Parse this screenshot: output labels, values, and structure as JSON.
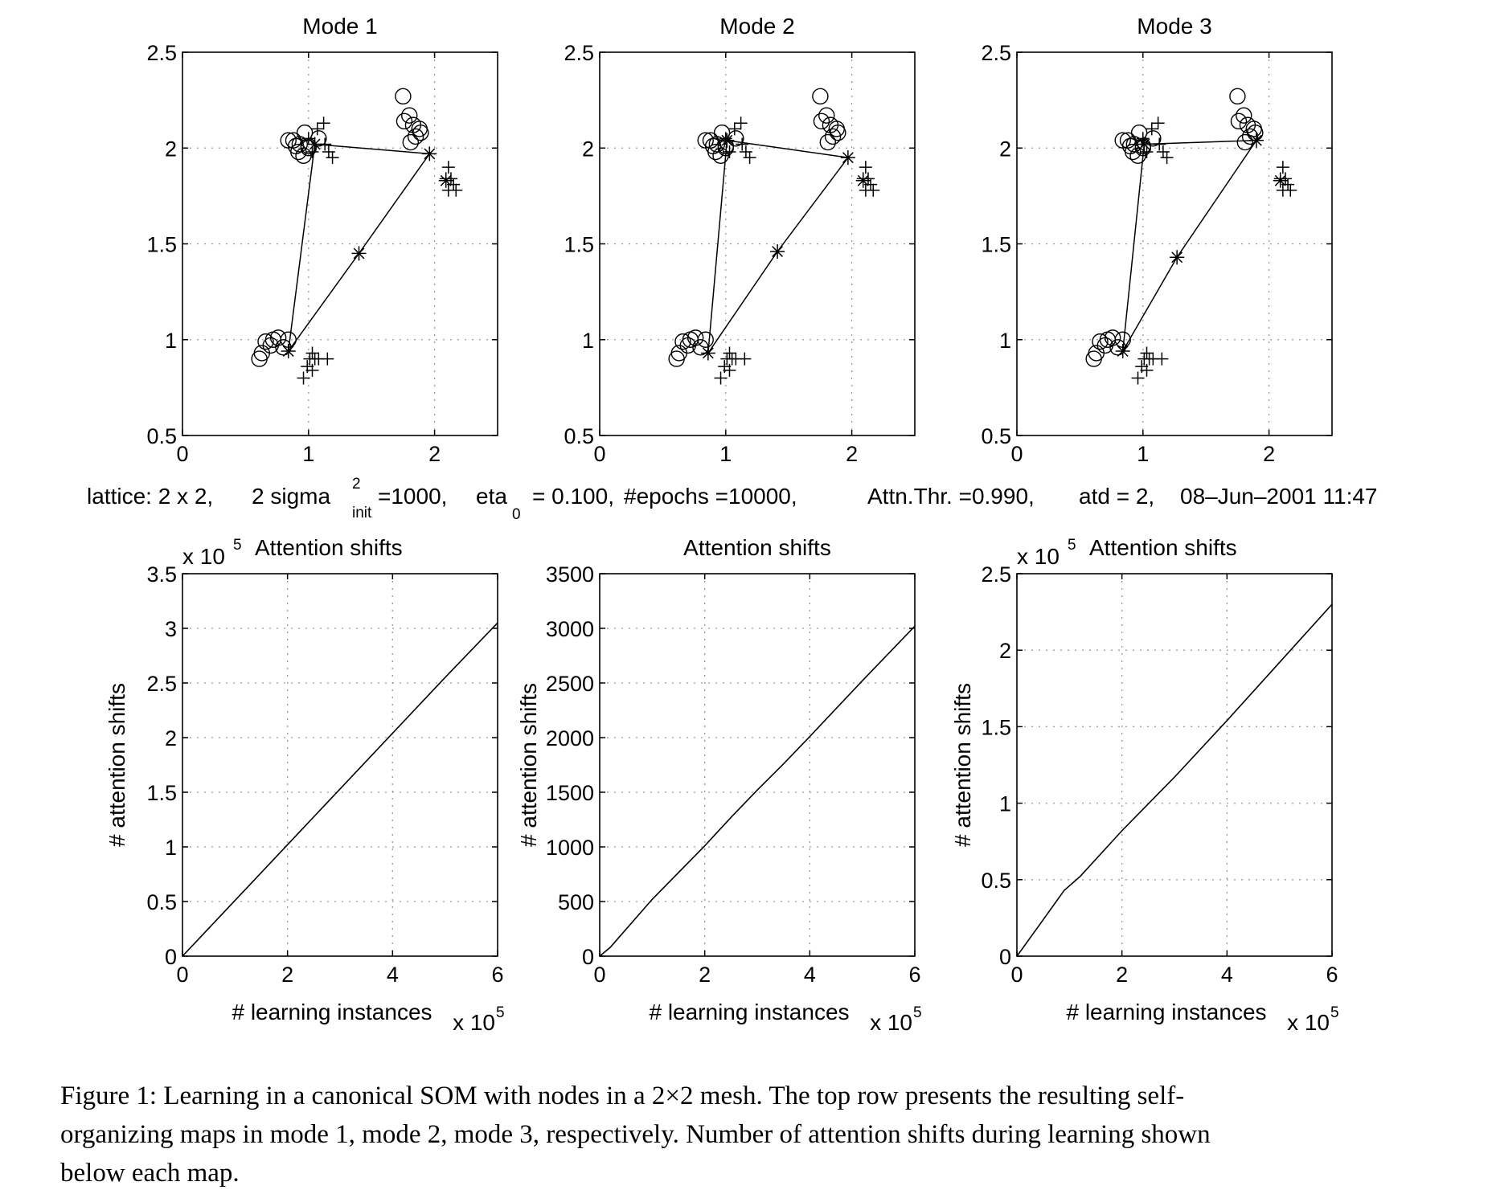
{
  "chart_data": [
    {
      "type": "scatter",
      "title": "Mode 1",
      "xlim": [
        0,
        2.5
      ],
      "ylim": [
        0.5,
        2.5
      ],
      "xticks": [
        "0",
        "1",
        "2"
      ],
      "yticks": [
        "0.5",
        "1",
        "1.5",
        "2",
        "2.5"
      ],
      "grid": true,
      "circles": [
        [
          0.7,
          0.97
        ],
        [
          0.76,
          1.01
        ],
        [
          0.84,
          1.0
        ],
        [
          0.66,
          0.99
        ],
        [
          0.63,
          0.93
        ],
        [
          0.61,
          0.9
        ],
        [
          0.72,
          1.0
        ],
        [
          0.8,
          0.96
        ],
        [
          0.84,
          2.04
        ],
        [
          0.88,
          2.04
        ],
        [
          0.93,
          2.02
        ],
        [
          0.97,
          2.08
        ],
        [
          0.92,
          1.98
        ],
        [
          0.96,
          1.96
        ],
        [
          1.0,
          2.0
        ],
        [
          0.9,
          2.01
        ],
        [
          1.08,
          2.05
        ],
        [
          1.0,
          2.01
        ],
        [
          1.75,
          2.27
        ],
        [
          1.76,
          2.14
        ],
        [
          1.8,
          2.17
        ],
        [
          1.83,
          2.12
        ],
        [
          1.85,
          2.06
        ],
        [
          1.88,
          2.1
        ],
        [
          1.81,
          2.03
        ],
        [
          1.89,
          2.08
        ]
      ],
      "pluses": [
        [
          1.01,
          0.9
        ],
        [
          1.03,
          0.93
        ],
        [
          1.05,
          0.9
        ],
        [
          1.08,
          0.9
        ],
        [
          0.99,
          0.86
        ],
        [
          1.03,
          0.84
        ],
        [
          0.96,
          0.8
        ],
        [
          1.15,
          0.9
        ],
        [
          1.0,
          2.05
        ],
        [
          1.07,
          2.1
        ],
        [
          1.12,
          2.13
        ],
        [
          1.13,
          2.02
        ],
        [
          1.16,
          1.98
        ],
        [
          1.19,
          1.95
        ],
        [
          1.03,
          1.98
        ],
        [
          2.09,
          1.84
        ],
        [
          2.11,
          1.9
        ],
        [
          2.13,
          1.84
        ],
        [
          2.15,
          1.81
        ],
        [
          2.17,
          1.78
        ],
        [
          2.11,
          1.78
        ]
      ],
      "nodes": [
        [
          0.84,
          0.94
        ],
        [
          1.05,
          2.02
        ],
        [
          1.96,
          1.97
        ],
        [
          1.4,
          1.45
        ]
      ],
      "centroids": [
        [
          2.09,
          1.83
        ]
      ],
      "lattice_edges": [
        [
          0,
          1
        ],
        [
          1,
          2
        ],
        [
          2,
          3
        ],
        [
          3,
          0
        ]
      ]
    },
    {
      "type": "scatter",
      "title": "Mode 2",
      "xlim": [
        0,
        2.5
      ],
      "ylim": [
        0.5,
        2.5
      ],
      "xticks": [
        "0",
        "1",
        "2"
      ],
      "yticks": [
        "0.5",
        "1",
        "1.5",
        "2",
        "2.5"
      ],
      "grid": true,
      "circles": [
        [
          0.7,
          0.97
        ],
        [
          0.76,
          1.01
        ],
        [
          0.84,
          1.0
        ],
        [
          0.66,
          0.99
        ],
        [
          0.63,
          0.93
        ],
        [
          0.61,
          0.9
        ],
        [
          0.72,
          1.0
        ],
        [
          0.8,
          0.96
        ],
        [
          0.84,
          2.04
        ],
        [
          0.88,
          2.04
        ],
        [
          0.93,
          2.02
        ],
        [
          0.97,
          2.08
        ],
        [
          0.92,
          1.98
        ],
        [
          0.96,
          1.96
        ],
        [
          1.0,
          2.0
        ],
        [
          0.9,
          2.01
        ],
        [
          1.08,
          2.05
        ],
        [
          1.0,
          2.01
        ],
        [
          1.75,
          2.27
        ],
        [
          1.76,
          2.14
        ],
        [
          1.8,
          2.17
        ],
        [
          1.83,
          2.12
        ],
        [
          1.85,
          2.06
        ],
        [
          1.88,
          2.1
        ],
        [
          1.81,
          2.03
        ],
        [
          1.89,
          2.08
        ]
      ],
      "pluses": [
        [
          1.01,
          0.9
        ],
        [
          1.03,
          0.93
        ],
        [
          1.05,
          0.9
        ],
        [
          1.08,
          0.9
        ],
        [
          0.99,
          0.86
        ],
        [
          1.03,
          0.84
        ],
        [
          0.96,
          0.8
        ],
        [
          1.15,
          0.9
        ],
        [
          1.0,
          2.05
        ],
        [
          1.07,
          2.1
        ],
        [
          1.12,
          2.13
        ],
        [
          1.13,
          2.02
        ],
        [
          1.16,
          1.98
        ],
        [
          1.19,
          1.95
        ],
        [
          1.03,
          1.98
        ],
        [
          2.09,
          1.84
        ],
        [
          2.11,
          1.9
        ],
        [
          2.13,
          1.84
        ],
        [
          2.15,
          1.81
        ],
        [
          2.17,
          1.78
        ],
        [
          2.11,
          1.78
        ]
      ],
      "nodes": [
        [
          0.86,
          0.93
        ],
        [
          1.01,
          2.04
        ],
        [
          1.97,
          1.95
        ],
        [
          1.41,
          1.46
        ]
      ],
      "centroids": [
        [
          2.09,
          1.83
        ]
      ],
      "lattice_edges": [
        [
          0,
          1
        ],
        [
          1,
          2
        ],
        [
          2,
          3
        ],
        [
          3,
          0
        ]
      ]
    },
    {
      "type": "scatter",
      "title": "Mode 3",
      "xlim": [
        0,
        2.5
      ],
      "ylim": [
        0.5,
        2.5
      ],
      "xticks": [
        "0",
        "1",
        "2"
      ],
      "yticks": [
        "0.5",
        "1",
        "1.5",
        "2",
        "2.5"
      ],
      "grid": true,
      "circles": [
        [
          0.7,
          0.97
        ],
        [
          0.76,
          1.01
        ],
        [
          0.84,
          1.0
        ],
        [
          0.66,
          0.99
        ],
        [
          0.63,
          0.93
        ],
        [
          0.61,
          0.9
        ],
        [
          0.72,
          1.0
        ],
        [
          0.8,
          0.96
        ],
        [
          0.84,
          2.04
        ],
        [
          0.88,
          2.04
        ],
        [
          0.93,
          2.02
        ],
        [
          0.97,
          2.08
        ],
        [
          0.92,
          1.98
        ],
        [
          0.96,
          1.96
        ],
        [
          1.0,
          2.0
        ],
        [
          0.9,
          2.01
        ],
        [
          1.08,
          2.05
        ],
        [
          1.0,
          2.01
        ],
        [
          1.75,
          2.27
        ],
        [
          1.76,
          2.14
        ],
        [
          1.8,
          2.17
        ],
        [
          1.83,
          2.12
        ],
        [
          1.85,
          2.06
        ],
        [
          1.88,
          2.1
        ],
        [
          1.81,
          2.03
        ],
        [
          1.89,
          2.08
        ]
      ],
      "pluses": [
        [
          1.01,
          0.9
        ],
        [
          1.03,
          0.93
        ],
        [
          1.05,
          0.9
        ],
        [
          1.08,
          0.9
        ],
        [
          0.99,
          0.86
        ],
        [
          1.03,
          0.84
        ],
        [
          0.96,
          0.8
        ],
        [
          1.15,
          0.9
        ],
        [
          1.0,
          2.05
        ],
        [
          1.07,
          2.1
        ],
        [
          1.12,
          2.13
        ],
        [
          1.13,
          2.02
        ],
        [
          1.16,
          1.98
        ],
        [
          1.19,
          1.95
        ],
        [
          1.03,
          1.98
        ],
        [
          2.09,
          1.84
        ],
        [
          2.11,
          1.9
        ],
        [
          2.13,
          1.84
        ],
        [
          2.15,
          1.81
        ],
        [
          2.17,
          1.78
        ],
        [
          2.11,
          1.78
        ]
      ],
      "nodes": [
        [
          0.84,
          0.94
        ],
        [
          1.01,
          2.02
        ],
        [
          1.9,
          2.04
        ],
        [
          1.27,
          1.43
        ]
      ],
      "centroids": [
        [
          2.09,
          1.83
        ]
      ],
      "lattice_edges": [
        [
          0,
          1
        ],
        [
          1,
          2
        ],
        [
          2,
          3
        ],
        [
          3,
          0
        ]
      ]
    },
    {
      "type": "line",
      "title": "Attention shifts",
      "xlabel": "# learning instances",
      "ylabel": "# attention shifts",
      "x_multiplier": "x 10",
      "x_multiplier_exp": "5",
      "y_multiplier": "x 10",
      "y_multiplier_exp": "5",
      "xlim": [
        0,
        6
      ],
      "ylim": [
        0,
        3.5
      ],
      "xticks": [
        "0",
        "2",
        "4",
        "6"
      ],
      "yticks": [
        "0",
        "0.5",
        "1",
        "1.5",
        "2",
        "2.5",
        "3",
        "3.5"
      ],
      "grid": true,
      "x": [
        0,
        1,
        2,
        3,
        4,
        5,
        6
      ],
      "y": [
        0,
        0.51,
        1.02,
        1.53,
        2.04,
        2.55,
        3.05
      ]
    },
    {
      "type": "line",
      "title": "Attention shifts",
      "xlabel": "# learning instances",
      "ylabel": "# attention shifts",
      "x_multiplier": "x 10",
      "x_multiplier_exp": "5",
      "xlim": [
        0,
        6
      ],
      "ylim": [
        0,
        3500
      ],
      "xticks": [
        "0",
        "2",
        "4",
        "6"
      ],
      "yticks": [
        "0",
        "500",
        "1000",
        "1500",
        "2000",
        "2500",
        "3000",
        "3500"
      ],
      "grid": true,
      "x": [
        0,
        0.2,
        1,
        2,
        2.5,
        3,
        3.5,
        4,
        5,
        6
      ],
      "y": [
        0,
        80,
        520,
        1010,
        1270,
        1520,
        1760,
        2010,
        2520,
        3020
      ]
    },
    {
      "type": "line",
      "title": "Attention shifts",
      "xlabel": "# learning instances",
      "ylabel": "# attention shifts",
      "x_multiplier": "x 10",
      "x_multiplier_exp": "5",
      "y_multiplier": "x 10",
      "y_multiplier_exp": "5",
      "xlim": [
        0,
        6
      ],
      "ylim": [
        0,
        2.5
      ],
      "xticks": [
        "0",
        "2",
        "4",
        "6"
      ],
      "yticks": [
        "0",
        "0.5",
        "1",
        "1.5",
        "2",
        "2.5"
      ],
      "grid": true,
      "x": [
        0,
        0.4,
        0.9,
        1.2,
        2,
        3,
        4,
        5,
        6
      ],
      "y": [
        0,
        0.19,
        0.43,
        0.52,
        0.82,
        1.17,
        1.54,
        1.92,
        2.3
      ]
    }
  ],
  "params_line": {
    "lattice": "lattice: 2 x 2,",
    "sigma_a": "2 sigma",
    "sigma_sup": "2",
    "sigma_sub": "init",
    "sigma_b": "=1000,",
    "eta_a": "eta",
    "eta_sub": "0",
    "eta_b": "= 0.100,",
    "epochs": "#epochs =10000,",
    "attn": "Attn.Thr. =0.990,",
    "atd": "atd = 2,",
    "date": "08–Jun–2001  11:47"
  },
  "caption": {
    "line1": "Figure 1: Learning in a canonical SOM with nodes in a 2×2 mesh. The top row presents the resulting self-",
    "line2": "organizing maps in mode 1, mode 2, mode 3, respectively. Number of attention shifts during learning shown",
    "line3": "below each map."
  }
}
